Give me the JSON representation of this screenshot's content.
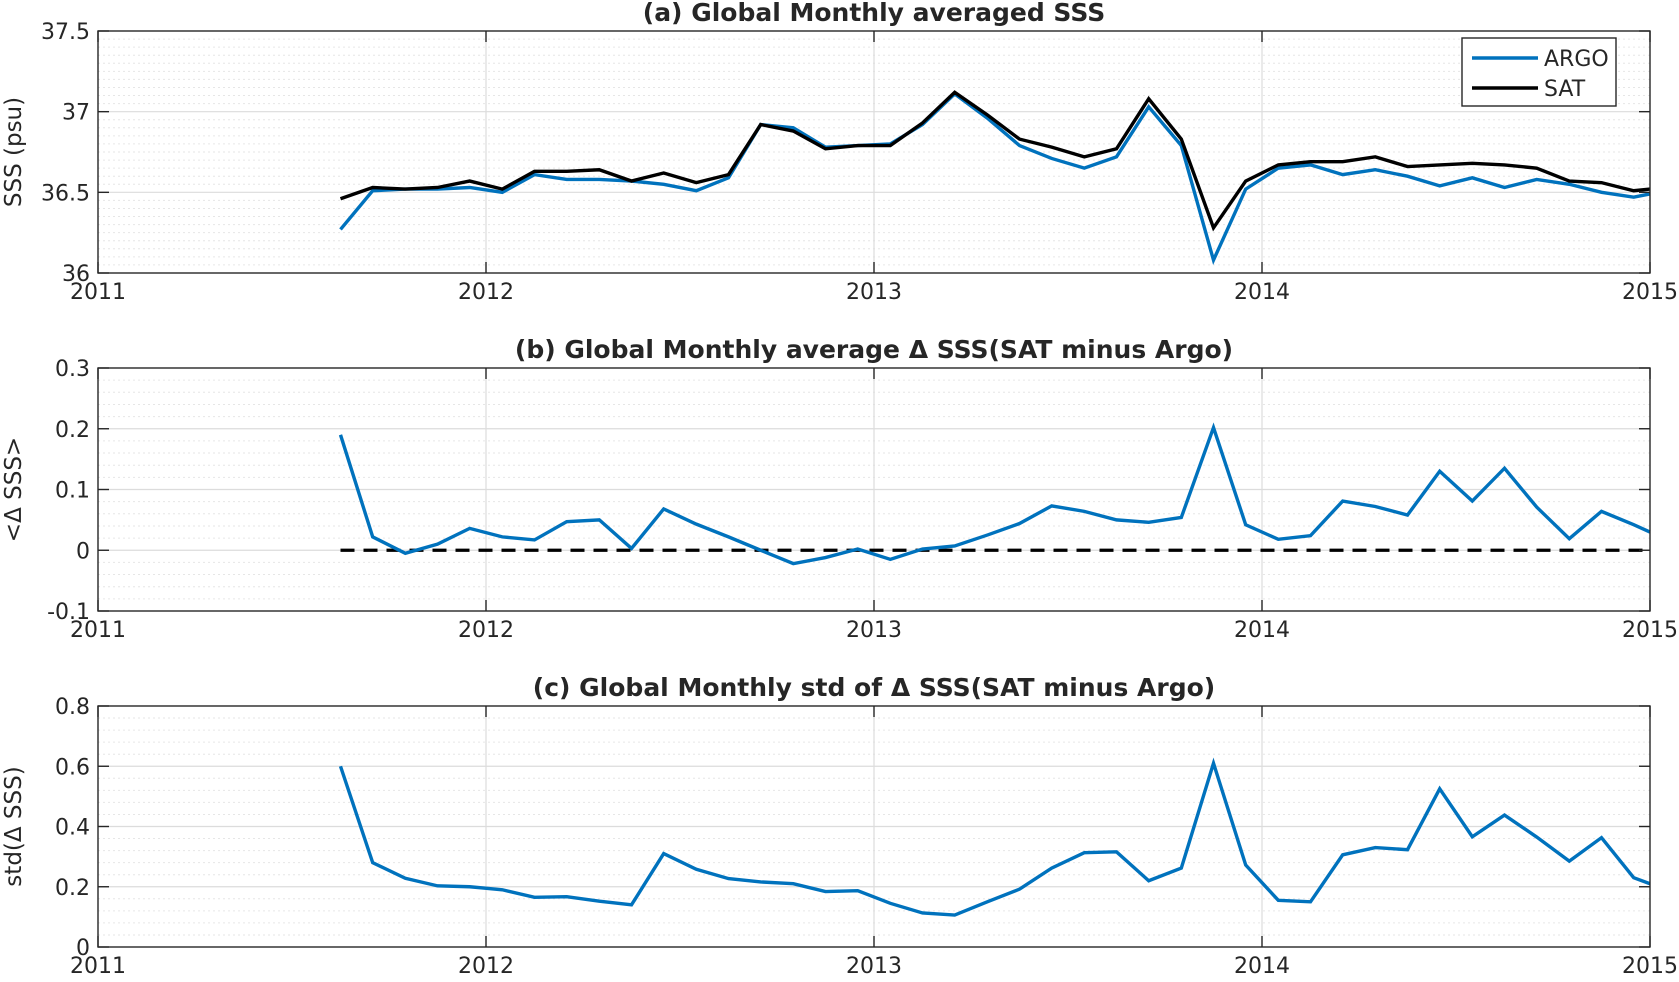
{
  "colors": {
    "argo": "#0072BD",
    "sat": "#000000",
    "axis": "#262626",
    "major_grid": "#dcdcdc",
    "minor_grid": "#e6e6e6"
  },
  "chart_data": [
    {
      "type": "line",
      "title": "(a) Global Monthly averaged SSS",
      "xlabel": "",
      "ylabel": "SSS (psu)",
      "xlim": [
        2011,
        2015
      ],
      "ylim": [
        36,
        37.5
      ],
      "xticks": [
        2011,
        2012,
        2013,
        2014,
        2015
      ],
      "xtick_labels": [
        "2011",
        "2012",
        "2013",
        "2014",
        "2015"
      ],
      "yticks": [
        36,
        36.5,
        37,
        37.5
      ],
      "ytick_labels": [
        "36",
        "36.5",
        "37",
        "37.5"
      ],
      "minor_ytick_step": 0.05,
      "grid": true,
      "legend_position": "top-right",
      "x": [
        2011.625,
        2011.708,
        2011.792,
        2011.875,
        2011.958,
        2012.042,
        2012.125,
        2012.208,
        2012.292,
        2012.375,
        2012.458,
        2012.542,
        2012.625,
        2012.708,
        2012.792,
        2012.875,
        2012.958,
        2013.042,
        2013.125,
        2013.208,
        2013.292,
        2013.375,
        2013.458,
        2013.542,
        2013.625,
        2013.708,
        2013.792,
        2013.875,
        2013.958,
        2014.042,
        2014.125,
        2014.208,
        2014.292,
        2014.375,
        2014.458,
        2014.542,
        2014.625,
        2014.708,
        2014.792,
        2014.875,
        2014.958,
        2015.0
      ],
      "series": [
        {
          "name": "ARGO",
          "color": "#0072BD",
          "values": [
            36.27,
            36.51,
            36.52,
            36.52,
            36.53,
            36.5,
            36.61,
            36.58,
            36.58,
            36.57,
            36.55,
            36.51,
            36.59,
            36.92,
            36.9,
            36.78,
            36.79,
            36.8,
            36.92,
            37.11,
            36.96,
            36.79,
            36.71,
            36.65,
            36.72,
            37.03,
            36.79,
            36.08,
            36.52,
            36.65,
            36.67,
            36.61,
            36.64,
            36.6,
            36.54,
            36.59,
            36.53,
            36.58,
            36.55,
            36.5,
            36.47,
            36.49
          ]
        },
        {
          "name": "SAT",
          "color": "#000000",
          "values": [
            36.46,
            36.53,
            36.52,
            36.53,
            36.57,
            36.52,
            36.63,
            36.63,
            36.64,
            36.57,
            36.62,
            36.56,
            36.61,
            36.92,
            36.88,
            36.77,
            36.79,
            36.79,
            36.93,
            37.12,
            36.98,
            36.83,
            36.78,
            36.72,
            36.77,
            37.08,
            36.83,
            36.28,
            36.57,
            36.67,
            36.69,
            36.69,
            36.72,
            36.66,
            36.67,
            36.68,
            36.67,
            36.65,
            36.57,
            36.56,
            36.51,
            36.52
          ]
        }
      ]
    },
    {
      "type": "line",
      "title": "(b) Global Monthly average Δ SSS(SAT minus Argo)",
      "xlabel": "",
      "ylabel": "<Δ SSS>",
      "xlim": [
        2011,
        2015
      ],
      "ylim": [
        -0.1,
        0.3
      ],
      "xticks": [
        2011,
        2012,
        2013,
        2014,
        2015
      ],
      "xtick_labels": [
        "2011",
        "2012",
        "2013",
        "2014",
        "2015"
      ],
      "yticks": [
        -0.1,
        0,
        0.1,
        0.2,
        0.3
      ],
      "ytick_labels": [
        "-0.1",
        "0",
        "0.1",
        "0.2",
        "0.3"
      ],
      "minor_ytick_step": 0.02,
      "grid": true,
      "reference_line": {
        "y": 0,
        "x_start": 2011.625,
        "x_end": 2015.0,
        "style": "dashed",
        "color": "#000000"
      },
      "x": [
        2011.625,
        2011.708,
        2011.792,
        2011.875,
        2011.958,
        2012.042,
        2012.125,
        2012.208,
        2012.292,
        2012.375,
        2012.458,
        2012.542,
        2012.625,
        2012.708,
        2012.792,
        2012.875,
        2012.958,
        2013.042,
        2013.125,
        2013.208,
        2013.292,
        2013.375,
        2013.458,
        2013.542,
        2013.625,
        2013.708,
        2013.792,
        2013.875,
        2013.958,
        2014.042,
        2014.125,
        2014.208,
        2014.292,
        2014.375,
        2014.458,
        2014.542,
        2014.625,
        2014.708,
        2014.792,
        2014.875,
        2014.958,
        2015.0
      ],
      "series": [
        {
          "color": "#0072BD",
          "values": [
            0.19,
            0.022,
            -0.005,
            0.01,
            0.036,
            0.022,
            0.017,
            0.047,
            0.05,
            0.003,
            0.068,
            0.043,
            0.022,
            0.0,
            -0.022,
            -0.012,
            0.002,
            -0.015,
            0.002,
            0.007,
            0.025,
            0.044,
            0.073,
            0.064,
            0.05,
            0.046,
            0.054,
            0.202,
            0.042,
            0.018,
            0.024,
            0.081,
            0.072,
            0.058,
            0.13,
            0.081,
            0.135,
            0.071,
            0.019,
            0.064,
            0.042,
            0.03
          ]
        }
      ]
    },
    {
      "type": "line",
      "title": "(c) Global Monthly std of Δ SSS(SAT minus Argo)",
      "xlabel": "",
      "ylabel": "std(Δ SSS)",
      "xlim": [
        2011,
        2015
      ],
      "ylim": [
        0,
        0.8
      ],
      "xticks": [
        2011,
        2012,
        2013,
        2014,
        2015
      ],
      "xtick_labels": [
        "2011",
        "2012",
        "2013",
        "2014",
        "2015"
      ],
      "yticks": [
        0,
        0.2,
        0.4,
        0.6,
        0.8
      ],
      "ytick_labels": [
        "0",
        "0.2",
        "0.4",
        "0.6",
        "0.8"
      ],
      "minor_ytick_step": 0.04,
      "grid": true,
      "x": [
        2011.625,
        2011.708,
        2011.792,
        2011.875,
        2011.958,
        2012.042,
        2012.125,
        2012.208,
        2012.292,
        2012.375,
        2012.458,
        2012.542,
        2012.625,
        2012.708,
        2012.792,
        2012.875,
        2012.958,
        2013.042,
        2013.125,
        2013.208,
        2013.292,
        2013.375,
        2013.458,
        2013.542,
        2013.625,
        2013.708,
        2013.792,
        2013.875,
        2013.958,
        2014.042,
        2014.125,
        2014.208,
        2014.292,
        2014.375,
        2014.458,
        2014.542,
        2014.625,
        2014.708,
        2014.792,
        2014.875,
        2014.958,
        2015.0
      ],
      "series": [
        {
          "color": "#0072BD",
          "values": [
            0.6,
            0.28,
            0.228,
            0.203,
            0.2,
            0.19,
            0.165,
            0.167,
            0.152,
            0.14,
            0.31,
            0.258,
            0.227,
            0.216,
            0.21,
            0.184,
            0.187,
            0.145,
            0.113,
            0.106,
            0.15,
            0.192,
            0.262,
            0.313,
            0.316,
            0.22,
            0.262,
            0.61,
            0.272,
            0.155,
            0.15,
            0.306,
            0.33,
            0.323,
            0.525,
            0.366,
            0.438,
            0.365,
            0.285,
            0.363,
            0.23,
            0.21
          ]
        }
      ]
    }
  ]
}
